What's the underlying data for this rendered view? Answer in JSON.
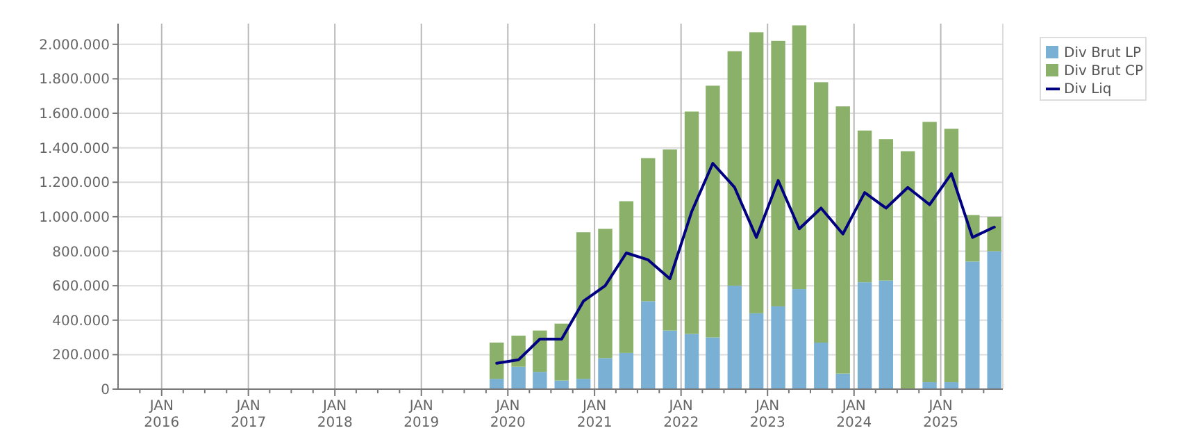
{
  "chart_data": {
    "type": "bar",
    "stacked": true,
    "x": [
      "2019-11-15",
      "2020-02-15",
      "2020-05-15",
      "2020-08-15",
      "2020-11-15",
      "2021-02-15",
      "2021-05-15",
      "2021-08-15",
      "2021-11-15",
      "2022-02-15",
      "2022-05-15",
      "2022-08-15",
      "2022-11-15",
      "2023-02-15",
      "2023-05-15",
      "2023-08-15",
      "2023-11-15",
      "2024-02-15",
      "2024-05-15",
      "2024-08-15",
      "2024-11-15",
      "2025-02-15",
      "2025-05-15",
      "2025-08-15"
    ],
    "series": [
      {
        "name": "Div Brut LP",
        "color": "#7ab0d4",
        "values": [
          60000,
          130000,
          100000,
          50000,
          60000,
          180000,
          210000,
          510000,
          340000,
          320000,
          300000,
          600000,
          440000,
          480000,
          580000,
          270000,
          90000,
          620000,
          630000,
          0,
          40000,
          40000,
          740000,
          800000
        ]
      },
      {
        "name": "Div Brut CP",
        "color": "#8ab06a",
        "values": [
          210000,
          180000,
          240000,
          330000,
          850000,
          750000,
          880000,
          830000,
          1050000,
          1290000,
          1460000,
          1360000,
          1630000,
          1540000,
          1530000,
          1510000,
          1550000,
          880000,
          820000,
          1380000,
          1510000,
          1470000,
          270000,
          200000
        ]
      },
      {
        "name": "Div Liq",
        "type": "line",
        "color": "#000080",
        "values": [
          150000,
          170000,
          290000,
          290000,
          510000,
          600000,
          790000,
          750000,
          640000,
          1030000,
          1310000,
          1170000,
          880000,
          1210000,
          930000,
          1050000,
          900000,
          1140000,
          1050000,
          1170000,
          1070000,
          1250000,
          880000,
          940000
        ]
      }
    ],
    "ylim": [
      0,
      2120000
    ],
    "yticks": [
      0,
      {
        "value": 200000,
        "label": "200.000"
      },
      {
        "value": 400000,
        "label": "400.000"
      },
      {
        "value": 600000,
        "label": "600.000"
      },
      {
        "value": 800000,
        "label": "800.000"
      },
      {
        "value": 1000000,
        "label": "1.000.000"
      },
      {
        "value": 1200000,
        "label": "1.200.000"
      },
      {
        "value": 1400000,
        "label": "1.400.000"
      },
      {
        "value": 1600000,
        "label": "1.600.000"
      },
      {
        "value": 1800000,
        "label": "1.800.000"
      },
      {
        "value": 2000000,
        "label": "2.000.000"
      }
    ],
    "xlim": [
      "2015-07-01",
      "2025-09-20"
    ],
    "xticks": [
      {
        "value": "2015-10-01",
        "label": null
      },
      {
        "value": "2016-01-01",
        "label": "JAN 2016"
      },
      {
        "value": "2016-04-01",
        "label": null
      },
      {
        "value": "2016-07-01",
        "label": null
      },
      {
        "value": "2016-10-01",
        "label": null
      },
      {
        "value": "2017-01-01",
        "label": "JAN 2017"
      },
      {
        "value": "2017-04-01",
        "label": null
      },
      {
        "value": "2017-07-01",
        "label": null
      },
      {
        "value": "2017-10-01",
        "label": null
      },
      {
        "value": "2018-01-01",
        "label": "JAN 2018"
      },
      {
        "value": "2018-04-01",
        "label": null
      },
      {
        "value": "2018-07-01",
        "label": null
      },
      {
        "value": "2018-10-01",
        "label": null
      },
      {
        "value": "2019-01-01",
        "label": "JAN 2019"
      },
      {
        "value": "2019-04-01",
        "label": null
      },
      {
        "value": "2019-07-01",
        "label": null
      },
      {
        "value": "2019-10-01",
        "label": null
      },
      {
        "value": "2020-01-01",
        "label": "JAN 2020"
      },
      {
        "value": "2020-04-01",
        "label": null
      },
      {
        "value": "2020-07-01",
        "label": null
      },
      {
        "value": "2020-10-01",
        "label": null
      },
      {
        "value": "2021-01-01",
        "label": "JAN 2021"
      },
      {
        "value": "2021-04-01",
        "label": null
      },
      {
        "value": "2021-07-01",
        "label": null
      },
      {
        "value": "2021-10-01",
        "label": null
      },
      {
        "value": "2022-01-01",
        "label": "JAN 2022"
      },
      {
        "value": "2022-04-01",
        "label": null
      },
      {
        "value": "2022-07-01",
        "label": null
      },
      {
        "value": "2022-10-01",
        "label": null
      },
      {
        "value": "2023-01-01",
        "label": "JAN 2023"
      },
      {
        "value": "2023-04-01",
        "label": null
      },
      {
        "value": "2023-07-01",
        "label": null
      },
      {
        "value": "2023-10-01",
        "label": null
      },
      {
        "value": "2024-01-01",
        "label": "JAN 2024"
      },
      {
        "value": "2024-04-01",
        "label": null
      },
      {
        "value": "2024-07-01",
        "label": null
      },
      {
        "value": "2024-10-01",
        "label": null
      },
      {
        "value": "2025-01-01",
        "label": "JAN 2025"
      },
      {
        "value": "2025-04-01",
        "label": null
      },
      {
        "value": "2025-07-01",
        "label": null
      }
    ],
    "grid": true,
    "legend": "top right",
    "marker": "none",
    "line_style": "solid"
  }
}
